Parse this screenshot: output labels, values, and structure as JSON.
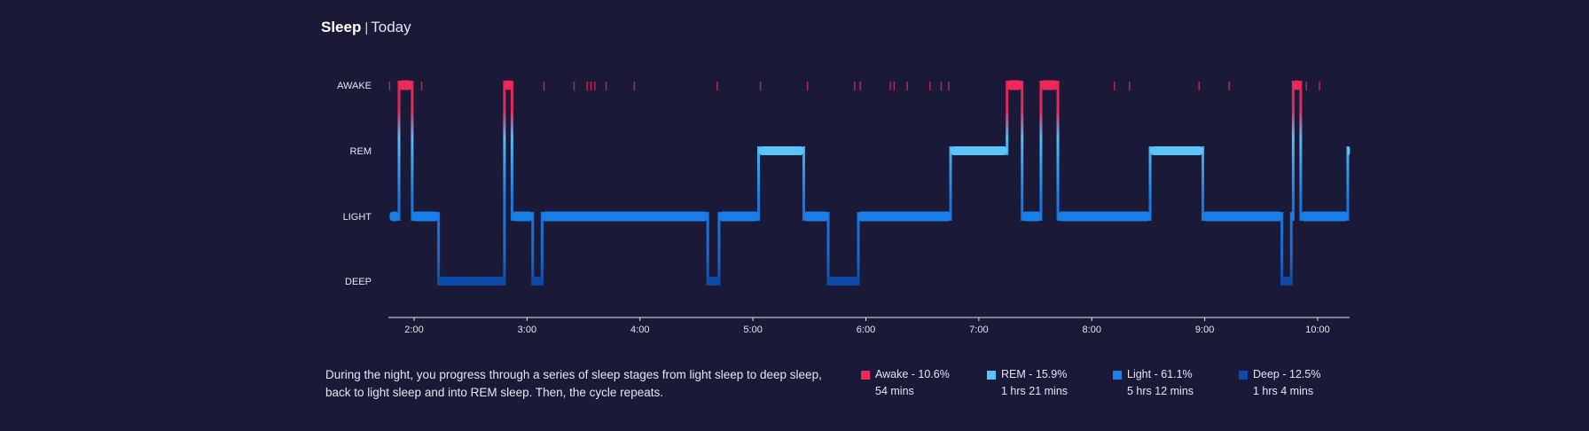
{
  "header": {
    "title": "Sleep",
    "separator": "|",
    "period": "Today"
  },
  "description": "During the night, you progress through a series of sleep stages from light sleep to deep sleep, back to light sleep and into REM sleep. Then, the cycle repeats.",
  "colors": {
    "background": "#1a1a38",
    "awake": "#f0285a",
    "rem": "#5ac4ff",
    "light": "#1a7ee8",
    "deep": "#0e4aa8",
    "axis": "#e6e6ee"
  },
  "legend": [
    {
      "label": "Awake - 10.6%",
      "duration": "54 mins",
      "color": "#f0285a"
    },
    {
      "label": "REM - 15.9%",
      "duration": "1 hrs 21 mins",
      "color": "#5ac4ff"
    },
    {
      "label": "Light - 61.1%",
      "duration": "5 hrs 12 mins",
      "color": "#1a7ee8"
    },
    {
      "label": "Deep - 12.5%",
      "duration": "1 hrs 4 mins",
      "color": "#0e4aa8"
    }
  ],
  "chart_data": {
    "type": "step",
    "title": "Sleep",
    "subtitle": "Today",
    "stages": [
      "AWAKE",
      "REM",
      "LIGHT",
      "DEEP"
    ],
    "x_ticks": [
      "2:00",
      "3:00",
      "4:00",
      "5:00",
      "6:00",
      "7:00",
      "8:00",
      "9:00",
      "10:00"
    ],
    "x_range": [
      "1:47",
      "10:17"
    ],
    "segments": [
      {
        "stage": "LIGHT",
        "start": "1:47",
        "end": "1:52"
      },
      {
        "stage": "AWAKE",
        "start": "1:52",
        "end": "1:59"
      },
      {
        "stage": "LIGHT",
        "start": "1:59",
        "end": "2:13"
      },
      {
        "stage": "DEEP",
        "start": "2:13",
        "end": "2:48"
      },
      {
        "stage": "AWAKE",
        "start": "2:48",
        "end": "2:52"
      },
      {
        "stage": "LIGHT",
        "start": "2:52",
        "end": "3:03"
      },
      {
        "stage": "DEEP",
        "start": "3:03",
        "end": "3:08"
      },
      {
        "stage": "LIGHT",
        "start": "3:08",
        "end": "4:36"
      },
      {
        "stage": "DEEP",
        "start": "4:36",
        "end": "4:42"
      },
      {
        "stage": "LIGHT",
        "start": "4:42",
        "end": "5:03"
      },
      {
        "stage": "REM",
        "start": "5:03",
        "end": "5:27"
      },
      {
        "stage": "LIGHT",
        "start": "5:27",
        "end": "5:40"
      },
      {
        "stage": "DEEP",
        "start": "5:40",
        "end": "5:56"
      },
      {
        "stage": "LIGHT",
        "start": "5:56",
        "end": "6:45"
      },
      {
        "stage": "REM",
        "start": "6:45",
        "end": "7:15"
      },
      {
        "stage": "AWAKE",
        "start": "7:15",
        "end": "7:23"
      },
      {
        "stage": "LIGHT",
        "start": "7:23",
        "end": "7:33"
      },
      {
        "stage": "AWAKE",
        "start": "7:33",
        "end": "7:42"
      },
      {
        "stage": "LIGHT",
        "start": "7:42",
        "end": "8:31"
      },
      {
        "stage": "REM",
        "start": "8:31",
        "end": "8:59"
      },
      {
        "stage": "LIGHT",
        "start": "8:59",
        "end": "9:41"
      },
      {
        "stage": "DEEP",
        "start": "9:41",
        "end": "9:46"
      },
      {
        "stage": "LIGHT",
        "start": "9:46",
        "end": "9:47"
      },
      {
        "stage": "AWAKE",
        "start": "9:47",
        "end": "9:51"
      },
      {
        "stage": "LIGHT",
        "start": "9:51",
        "end": "10:16"
      },
      {
        "stage": "REM",
        "start": "10:16",
        "end": "10:17"
      }
    ],
    "brief_awakenings": [
      "1:47",
      "2:04",
      "3:09",
      "3:25",
      "3:32",
      "3:34",
      "3:36",
      "3:42",
      "3:57",
      "4:41",
      "5:04",
      "5:29",
      "5:54",
      "5:57",
      "6:13",
      "6:15",
      "6:22",
      "6:34",
      "6:40",
      "6:44",
      "8:12",
      "8:20",
      "8:57",
      "9:13",
      "9:54",
      "10:01"
    ]
  }
}
